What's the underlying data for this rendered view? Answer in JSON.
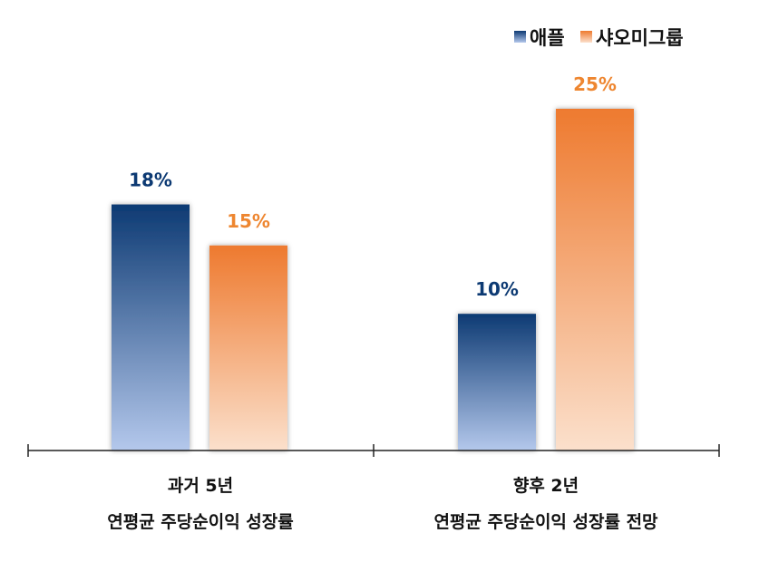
{
  "chart_data": {
    "type": "bar",
    "categories": [
      [
        "과거 5년",
        "연평균 주당순이익 성장률"
      ],
      [
        "향후 2년",
        "연평균 주당순이익 성장률 전망"
      ]
    ],
    "series": [
      {
        "name": "애플",
        "values": [
          18,
          10
        ],
        "labels": [
          "18%",
          "10%"
        ],
        "color_top": "#0d3a73",
        "color_bottom": "#b4c8ec",
        "label_color": "#0d3a73"
      },
      {
        "name": "샤오미그룹",
        "values": [
          15,
          25
        ],
        "labels": [
          "15%",
          "25%"
        ],
        "color_top": "#ee7a2f",
        "color_bottom": "#fbe0cc",
        "label_color": "#ee8630"
      }
    ],
    "ylim": [
      0,
      25
    ],
    "legend_position": "top-right",
    "grid": false
  }
}
